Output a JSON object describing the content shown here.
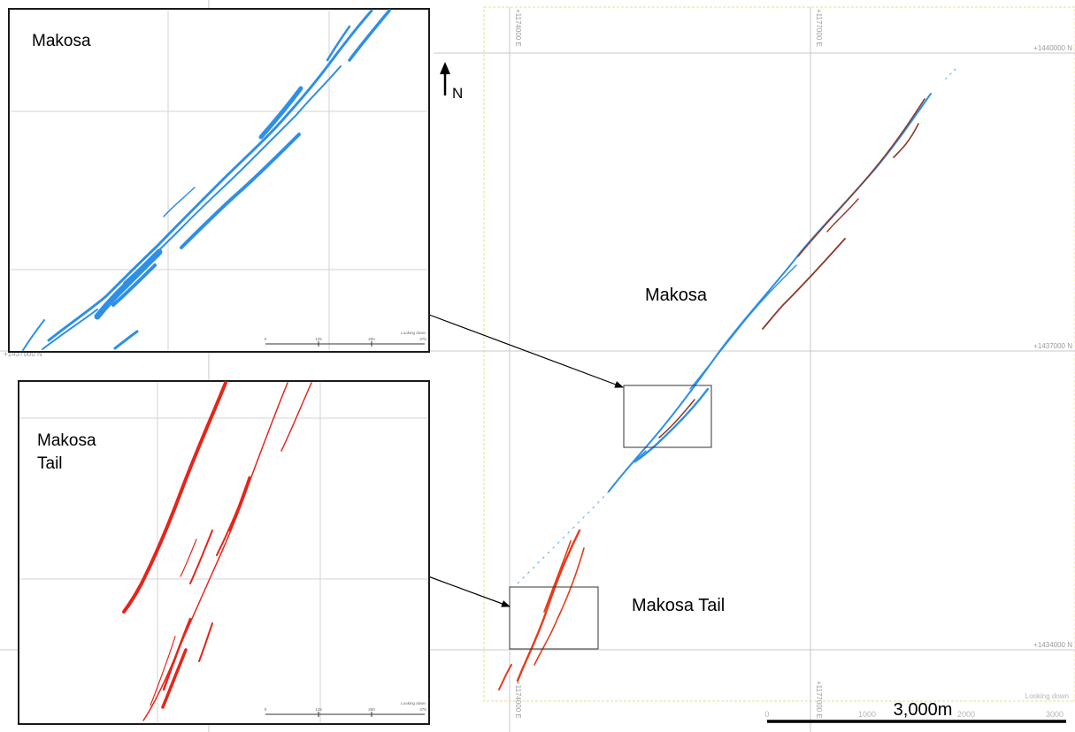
{
  "map": {
    "north_label": "N",
    "looking_down": "Looking down",
    "easting_labels": [
      "+1174000 E",
      "+1177000 E"
    ],
    "northing_labels": [
      "+1440000 N",
      "+1437000 N",
      "+1434000 N"
    ],
    "left_partial_northings": [
      "+1437000 N"
    ],
    "bottom_partial_labels": [
      "+1174000 E",
      "+1177000 E"
    ],
    "zone_labels": {
      "makosa": "Makosa",
      "makosa_tail": "Makosa Tail"
    },
    "scale_bar": {
      "title": "3,000m",
      "ticks": [
        "0",
        "1000",
        "2000",
        "3000"
      ]
    },
    "colors": {
      "makosa_veins": "#2e8fe6",
      "makosa_tail_veins": "#e83a1a",
      "dark_veins": "#8b3a2a",
      "extent": "#e6e089"
    }
  },
  "inset_makosa": {
    "title": "Makosa",
    "looking_down": "Looking down",
    "scale_ticks": [
      "0",
      "125",
      "250",
      "375"
    ]
  },
  "inset_tail": {
    "title_line1": "Makosa",
    "title_line2": "Tail",
    "looking_down": "Looking down",
    "scale_ticks": [
      "0",
      "125",
      "250",
      "375"
    ]
  }
}
